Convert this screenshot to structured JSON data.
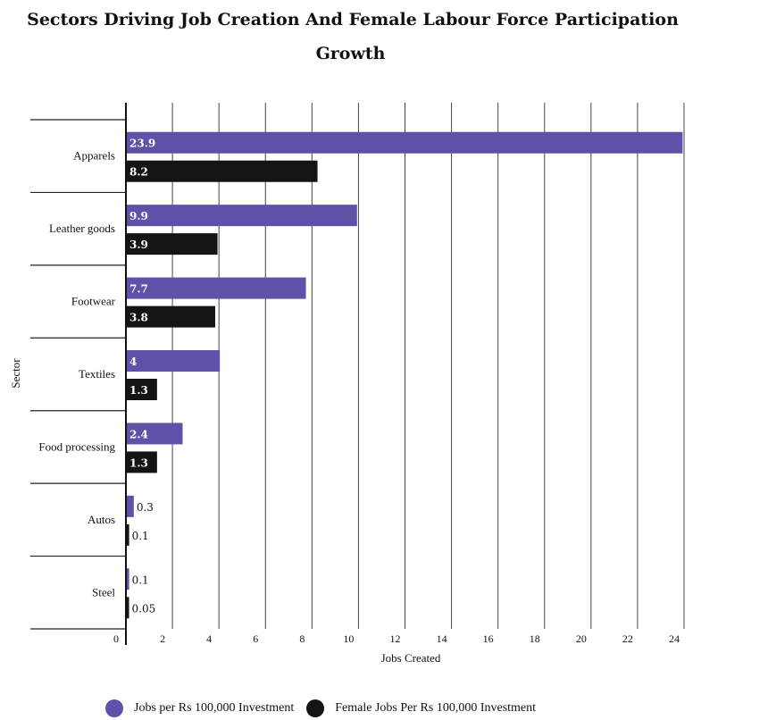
{
  "chart_data": {
    "type": "bar",
    "orientation": "horizontal",
    "title_line1": "Sectors Driving Job Creation And Female Labour Force Participation",
    "title_line2": "Growth",
    "xlabel": "Jobs Created",
    "ylabel": "Sector",
    "categories": [
      "Apparels",
      "Leather goods",
      "Footwear",
      "Textiles",
      "Food processing",
      "Autos",
      "Steel"
    ],
    "series": [
      {
        "name": "Jobs per Rs 100,000 Investment",
        "color": "#5e52a8",
        "values": [
          23.9,
          9.9,
          7.7,
          4,
          2.4,
          0.3,
          0.1
        ],
        "labels": [
          "23.9",
          "9.9",
          "7.7",
          "4",
          "2.4",
          "0.3",
          "0.1"
        ]
      },
      {
        "name": "Female Jobs Per Rs 100,000 Investment",
        "color": "#141414",
        "values": [
          8.2,
          3.9,
          3.8,
          1.3,
          1.3,
          0.1,
          0.05
        ],
        "labels": [
          "8.2",
          "3.9",
          "3.8",
          "1.3",
          "1.3",
          "0.1",
          "0.05"
        ]
      }
    ],
    "xlim": [
      0,
      24
    ],
    "xticks": [
      0,
      2,
      4,
      6,
      8,
      10,
      12,
      14,
      16,
      18,
      20,
      22,
      24
    ],
    "grid": true,
    "legend_position": "bottom"
  }
}
